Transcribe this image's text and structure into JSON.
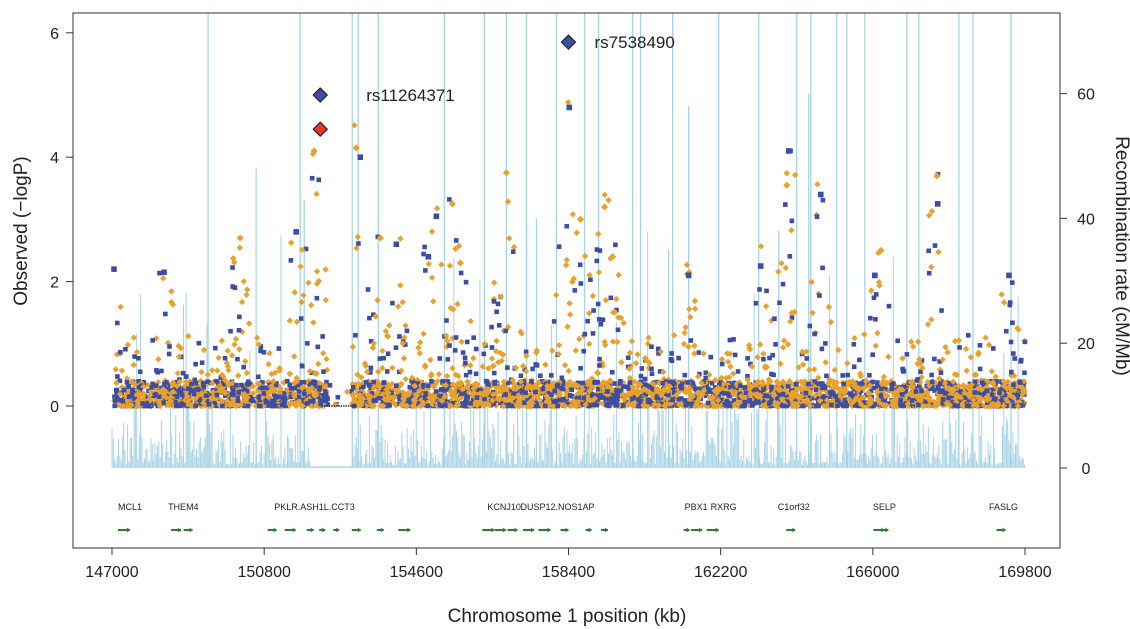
{
  "chart_data": {
    "type": "scatter",
    "xlabel": "Chromosome 1 position (kb)",
    "ylabel_left": "Observed (−logP)",
    "ylabel_right": "Recombination rate (cM/Mb)",
    "xlim": [
      147000,
      169800
    ],
    "ylim_left": [
      -2.3,
      6.3
    ],
    "ylim_right": [
      -13.8,
      75.5
    ],
    "xticks": [
      147000,
      150800,
      154600,
      158400,
      162200,
      166000,
      169800
    ],
    "yticks_left": [
      0,
      2,
      4,
      6
    ],
    "yticks_right": [
      0,
      20,
      40,
      60
    ],
    "colors": {
      "typed": "#3c4da6",
      "imputed": "#e8a12b",
      "recombination": "#a9d3e5",
      "gene": "#2e7d32",
      "highlight_blue": "#3d4f9e",
      "highlight_red": "#e33b2b"
    },
    "highlighted_snps": [
      {
        "label": "rs7538490",
        "x": 158400,
        "y": 5.85,
        "color": "#3d4f9e"
      },
      {
        "label": "rs11264371",
        "x": 152200,
        "y": 5.0,
        "color": "#3d4f9e"
      },
      {
        "label": "",
        "x": 152200,
        "y": 4.45,
        "color": "#e33b2b"
      }
    ],
    "peaks": [
      {
        "x": 147050,
        "y": 2.2,
        "series": "typed"
      },
      {
        "x": 148300,
        "y": 2.15,
        "series": "typed"
      },
      {
        "x": 150200,
        "y": 2.7,
        "series": "imputed"
      },
      {
        "x": 151600,
        "y": 2.8,
        "series": "typed"
      },
      {
        "x": 152050,
        "y": 4.1,
        "series": "imputed"
      },
      {
        "x": 153100,
        "y": 4.15,
        "series": "imputed"
      },
      {
        "x": 153200,
        "y": 4.0,
        "series": "typed"
      },
      {
        "x": 153700,
        "y": 2.7,
        "series": "imputed"
      },
      {
        "x": 154100,
        "y": 2.6,
        "series": "typed"
      },
      {
        "x": 154900,
        "y": 2.4,
        "series": "typed"
      },
      {
        "x": 155100,
        "y": 3.05,
        "series": "typed"
      },
      {
        "x": 155500,
        "y": 3.25,
        "series": "imputed"
      },
      {
        "x": 155700,
        "y": 2.3,
        "series": "imputed"
      },
      {
        "x": 156850,
        "y": 3.75,
        "series": "imputed"
      },
      {
        "x": 158420,
        "y": 4.8,
        "series": "typed"
      },
      {
        "x": 158700,
        "y": 3.0,
        "series": "imputed"
      },
      {
        "x": 159300,
        "y": 3.2,
        "series": "imputed"
      },
      {
        "x": 159500,
        "y": 2.4,
        "series": "imputed"
      },
      {
        "x": 161400,
        "y": 2.1,
        "series": "typed"
      },
      {
        "x": 163200,
        "y": 2.25,
        "series": "typed"
      },
      {
        "x": 163900,
        "y": 4.1,
        "series": "typed"
      },
      {
        "x": 163850,
        "y": 3.55,
        "series": "imputed"
      },
      {
        "x": 164700,
        "y": 3.4,
        "series": "typed"
      },
      {
        "x": 166050,
        "y": 2.1,
        "series": "typed"
      },
      {
        "x": 166200,
        "y": 2.5,
        "series": "imputed"
      },
      {
        "x": 167600,
        "y": 3.7,
        "series": "imputed"
      },
      {
        "x": 167620,
        "y": 3.25,
        "series": "typed"
      },
      {
        "x": 169400,
        "y": 2.1,
        "series": "typed"
      }
    ],
    "recombination_spikes": [
      [
        149400,
        75
      ],
      [
        151700,
        75
      ],
      [
        153000,
        75
      ],
      [
        153150,
        75
      ],
      [
        153650,
        75
      ],
      [
        155300,
        75
      ],
      [
        156850,
        75
      ],
      [
        156300,
        75
      ],
      [
        157350,
        75
      ],
      [
        158100,
        75
      ],
      [
        158800,
        75
      ],
      [
        159150,
        75
      ],
      [
        160000,
        75
      ],
      [
        160200,
        75
      ],
      [
        161000,
        75
      ],
      [
        162150,
        75
      ],
      [
        163150,
        75
      ],
      [
        164100,
        75
      ],
      [
        164450,
        75
      ],
      [
        165100,
        75
      ],
      [
        165350,
        75
      ],
      [
        165800,
        75
      ],
      [
        166850,
        75
      ],
      [
        167150,
        75
      ],
      [
        168150,
        75
      ],
      [
        168500,
        75
      ],
      [
        169450,
        75
      ],
      [
        150600,
        48
      ],
      [
        151800,
        43
      ],
      [
        161400,
        58
      ],
      [
        164400,
        60
      ],
      [
        157600,
        40
      ],
      [
        163650,
        38
      ],
      [
        160900,
        35
      ]
    ],
    "genes": [
      {
        "name": "MCL1",
        "x": 147300,
        "label_dx": -6,
        "exons": [
          147300
        ]
      },
      {
        "name": "THEM4",
        "x": 148650,
        "label_dx": -10,
        "exons": [
          148600,
          148900
        ]
      },
      {
        "name": "PKLR.ASH1L.CCT3",
        "x": 152000,
        "label_dx": -38,
        "exons": [
          151000,
          151450,
          151950,
          152250,
          152600,
          153100,
          153700,
          154300
        ]
      },
      {
        "name": "KCNJ10",
        "x": 156800,
        "label_dx": -17,
        "exons": [
          156400,
          156700,
          157000
        ]
      },
      {
        "name": "DUSP12.NOS1AP",
        "x": 158200,
        "label_dx": -40,
        "exons": [
          157400,
          157800,
          158300,
          158900,
          159300
        ]
      },
      {
        "name": "PBX1",
        "x": 161600,
        "label_dx": -12,
        "exons": [
          161350,
          161600
        ]
      },
      {
        "name": "RXRG",
        "x": 162100,
        "label_dx": -6,
        "exons": [
          162000
        ]
      },
      {
        "name": "C1orf32",
        "x": 164050,
        "label_dx": -17,
        "exons": [
          163950
        ]
      },
      {
        "name": "SELP",
        "x": 166250,
        "label_dx": -10,
        "exons": [
          166150,
          166300
        ]
      },
      {
        "name": "FASLG",
        "x": 169250,
        "label_dx": -14,
        "exons": [
          169200
        ]
      }
    ],
    "legend": "none",
    "grid": false
  }
}
